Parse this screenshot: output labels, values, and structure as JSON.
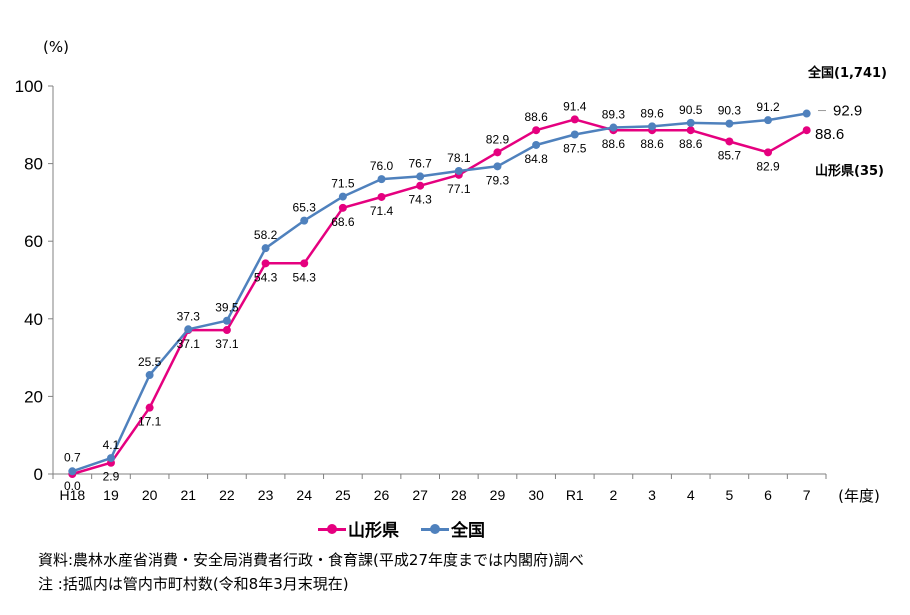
{
  "chart_data": {
    "type": "line",
    "ylabel": "(%)",
    "xlabel": "(年度)",
    "ylim": [
      0,
      100
    ],
    "yticks": [
      0,
      20,
      40,
      60,
      80,
      100
    ],
    "categories": [
      "H18",
      "19",
      "20",
      "21",
      "22",
      "23",
      "24",
      "25",
      "26",
      "27",
      "28",
      "29",
      "30",
      "R1",
      "2",
      "3",
      "4",
      "5",
      "6",
      "7"
    ],
    "series": [
      {
        "name": "山形県",
        "color": "#e5007f",
        "values": [
          0.0,
          2.9,
          17.1,
          37.1,
          37.1,
          54.3,
          54.3,
          68.6,
          71.4,
          74.3,
          77.1,
          82.9,
          88.6,
          91.4,
          88.6,
          88.6,
          88.6,
          85.7,
          82.9,
          88.6
        ],
        "labels": [
          "0.0",
          "2.9",
          "17.1",
          "37.1",
          "37.1",
          "54.3",
          "54.3",
          "68.6",
          "71.4",
          "74.3",
          "77.1",
          "82.9",
          "88.6",
          "91.4",
          "88.6",
          "88.6",
          "88.6",
          "85.7",
          "82.9",
          "88.6"
        ],
        "end_label": "山形県(35)"
      },
      {
        "name": "全国",
        "color": "#4f81bd",
        "values": [
          0.7,
          4.1,
          25.5,
          37.3,
          39.5,
          58.2,
          65.3,
          71.5,
          76.0,
          76.7,
          78.1,
          79.3,
          84.8,
          87.5,
          89.3,
          89.6,
          90.5,
          90.3,
          91.2,
          92.9
        ],
        "labels": [
          "0.7",
          "4.1",
          "25.5",
          "37.3",
          "39.5",
          "58.2",
          "65.3",
          "71.5",
          "76.0",
          "76.7",
          "78.1",
          "79.3",
          "84.8",
          "87.5",
          "89.3",
          "89.6",
          "90.5",
          "90.3",
          "91.2",
          "92.9"
        ],
        "end_label": "全国(1,741)"
      }
    ],
    "legend": "bottom"
  },
  "notes": {
    "source": "資料:農林水産省消費・安全局消費者行政・食育課(平成27年度までは内閣府)調べ",
    "note": "注 :括弧内は管内市町村数(令和8年3月末現在)"
  },
  "legend_items": [
    {
      "label": "山形県",
      "color": "#e5007f"
    },
    {
      "label": "全国",
      "color": "#4f81bd"
    }
  ]
}
